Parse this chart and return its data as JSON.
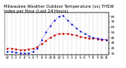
{
  "title": "Milwaukee Weather Outdoor Temperature (vs) THSW Index per Hour (Last 24 Hours)",
  "hours": [
    0,
    1,
    2,
    3,
    4,
    5,
    6,
    7,
    8,
    9,
    10,
    11,
    12,
    13,
    14,
    15,
    16,
    17,
    18,
    19,
    20,
    21,
    22,
    23
  ],
  "temp": [
    20,
    19,
    18,
    17,
    17,
    18,
    19,
    22,
    28,
    34,
    40,
    44,
    47,
    48,
    47,
    46,
    44,
    42,
    40,
    39,
    38,
    37,
    36,
    36
  ],
  "thsw": [
    14,
    13,
    12,
    11,
    10,
    11,
    13,
    20,
    35,
    50,
    62,
    72,
    80,
    82,
    72,
    65,
    58,
    52,
    47,
    43,
    40,
    39,
    37,
    36
  ],
  "temp_color": "#cc0000",
  "thsw_color": "#0000cc",
  "bg_color": "#ffffff",
  "grid_color": "#888888",
  "ylim": [
    8,
    88
  ],
  "yticks_right": [
    10,
    20,
    30,
    40,
    50,
    60,
    70,
    80
  ],
  "xtick_labels": [
    "12",
    "1",
    "2",
    "3",
    "4",
    "5",
    "6",
    "7",
    "8",
    "9",
    "10",
    "11",
    "12",
    "1",
    "2",
    "3",
    "4",
    "5",
    "6",
    "7",
    "8",
    "9",
    "10",
    "11"
  ],
  "title_fontsize": 3.8,
  "tick_fontsize": 3.0
}
